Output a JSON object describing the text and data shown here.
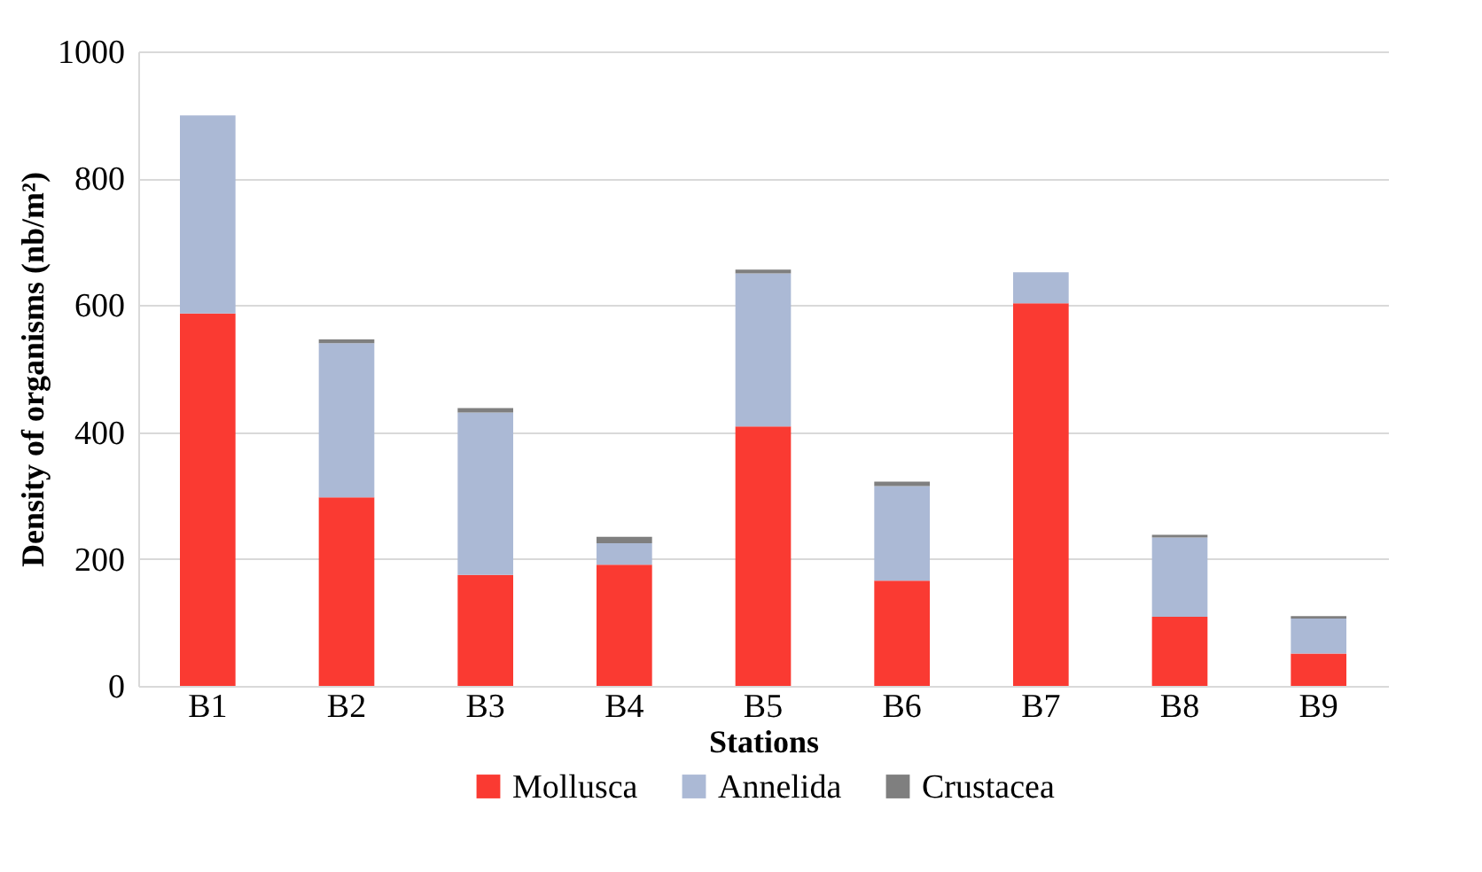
{
  "chart_data": {
    "type": "bar",
    "stacked": true,
    "xlabel": "Stations",
    "ylabel": "Density of organisms (nb/m²)",
    "categories": [
      "B1",
      "B2",
      "B3",
      "B4",
      "B5",
      "B6",
      "B7",
      "B8",
      "B9"
    ],
    "series": [
      {
        "name": "Mollusca",
        "color": "#fa3a32",
        "values": [
          587,
          297,
          175,
          191,
          409,
          166,
          603,
          109,
          51
        ]
      },
      {
        "name": "Annelida",
        "color": "#abb9d5",
        "values": [
          312,
          243,
          256,
          34,
          241,
          149,
          49,
          125,
          55
        ]
      },
      {
        "name": "Crustacea",
        "color": "#7f7f7f",
        "values": [
          0,
          6,
          7,
          10,
          6,
          7,
          0,
          4,
          4
        ]
      }
    ],
    "ylim": [
      0,
      1000
    ],
    "yticks": [
      0,
      200,
      400,
      600,
      800,
      1000
    ],
    "grid": "y",
    "legend": "bottom"
  }
}
